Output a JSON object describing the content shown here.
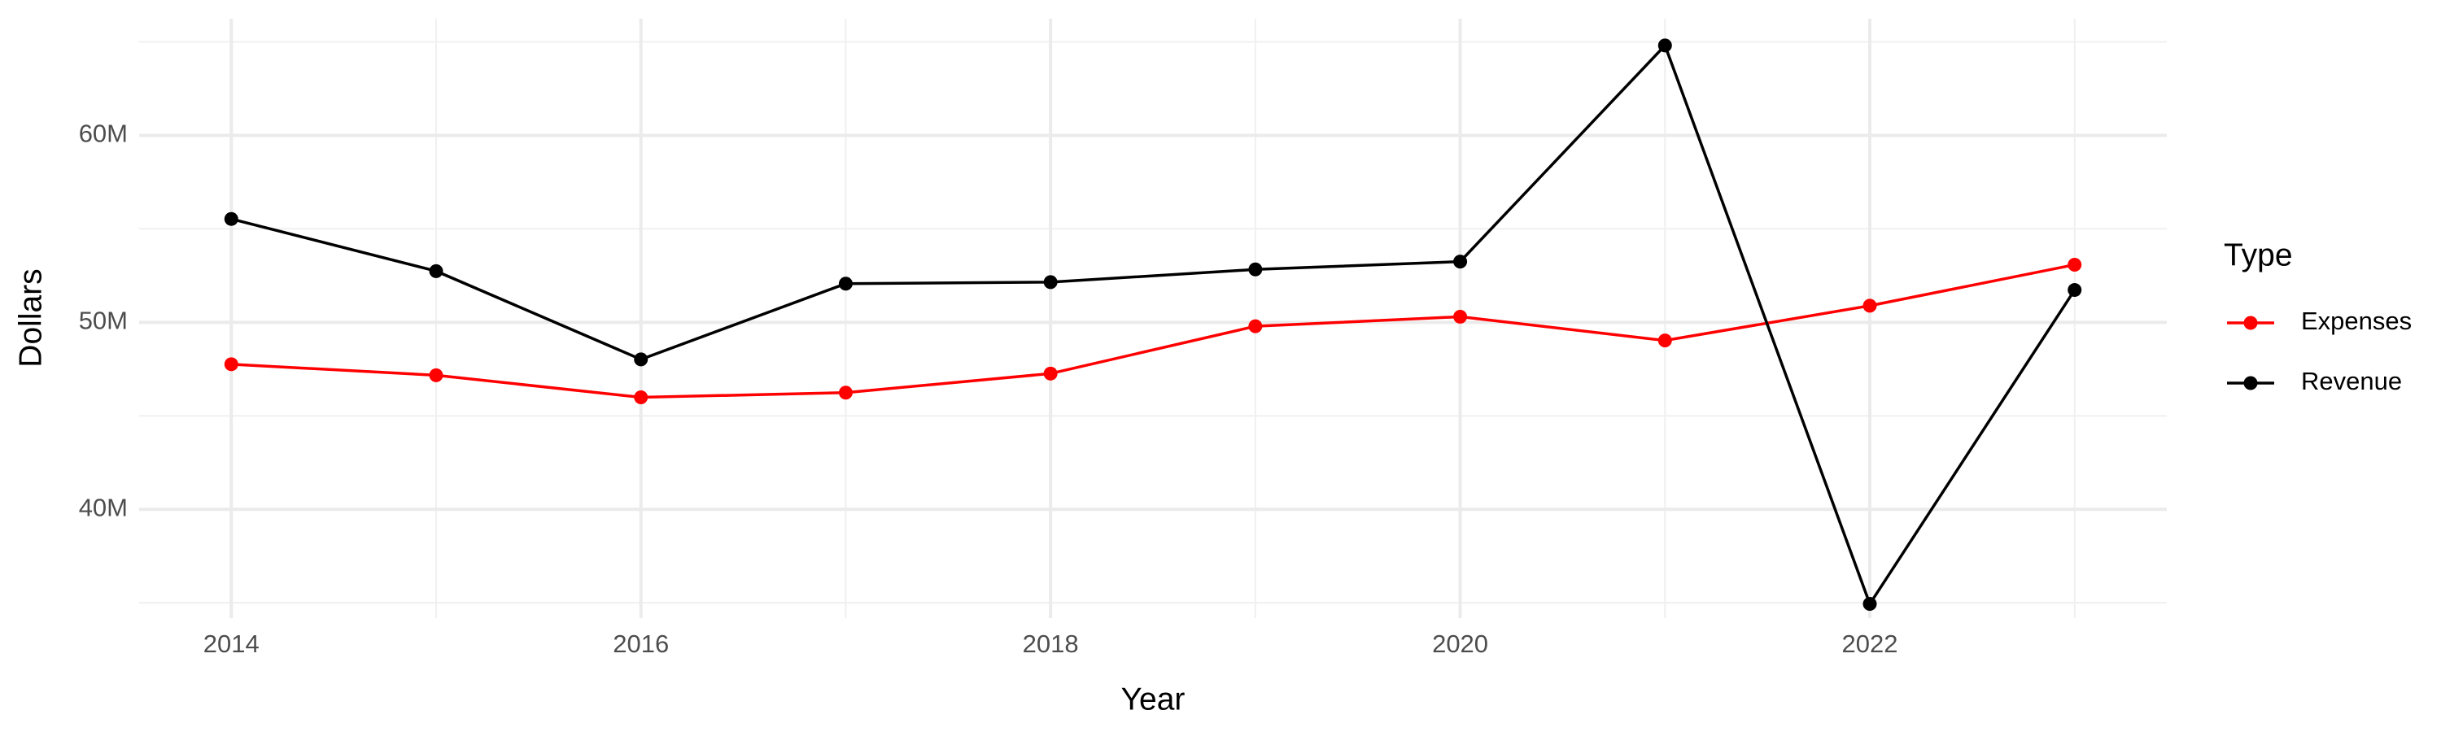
{
  "chart_data": {
    "type": "line",
    "x_label": "Year",
    "y_label": "Dollars",
    "legend_title": "Type",
    "x": [
      2014,
      2015,
      2016,
      2017,
      2018,
      2019,
      2020,
      2021,
      2022,
      2023
    ],
    "series": [
      {
        "name": "Expenses",
        "color": "#ff0000",
        "values": [
          47760000,
          47170000,
          45990000,
          46240000,
          47260000,
          49790000,
          50300000,
          49030000,
          50890000,
          53080000
        ]
      },
      {
        "name": "Revenue",
        "color": "#000000",
        "values": [
          55530000,
          52740000,
          48020000,
          52070000,
          52150000,
          52830000,
          53250000,
          64810000,
          34940000,
          51730000
        ]
      }
    ],
    "xlim": [
      2013.55,
      2023.45
    ],
    "xticks": [
      2014,
      2016,
      2018,
      2020,
      2022
    ],
    "ylim": [
      34180000,
      66240000
    ],
    "yticks": [
      {
        "value": 40000000,
        "label": "40M"
      },
      {
        "value": 50000000,
        "label": "50M"
      },
      {
        "value": 60000000,
        "label": "60M"
      }
    ],
    "grid": true,
    "legend_position": "right"
  }
}
